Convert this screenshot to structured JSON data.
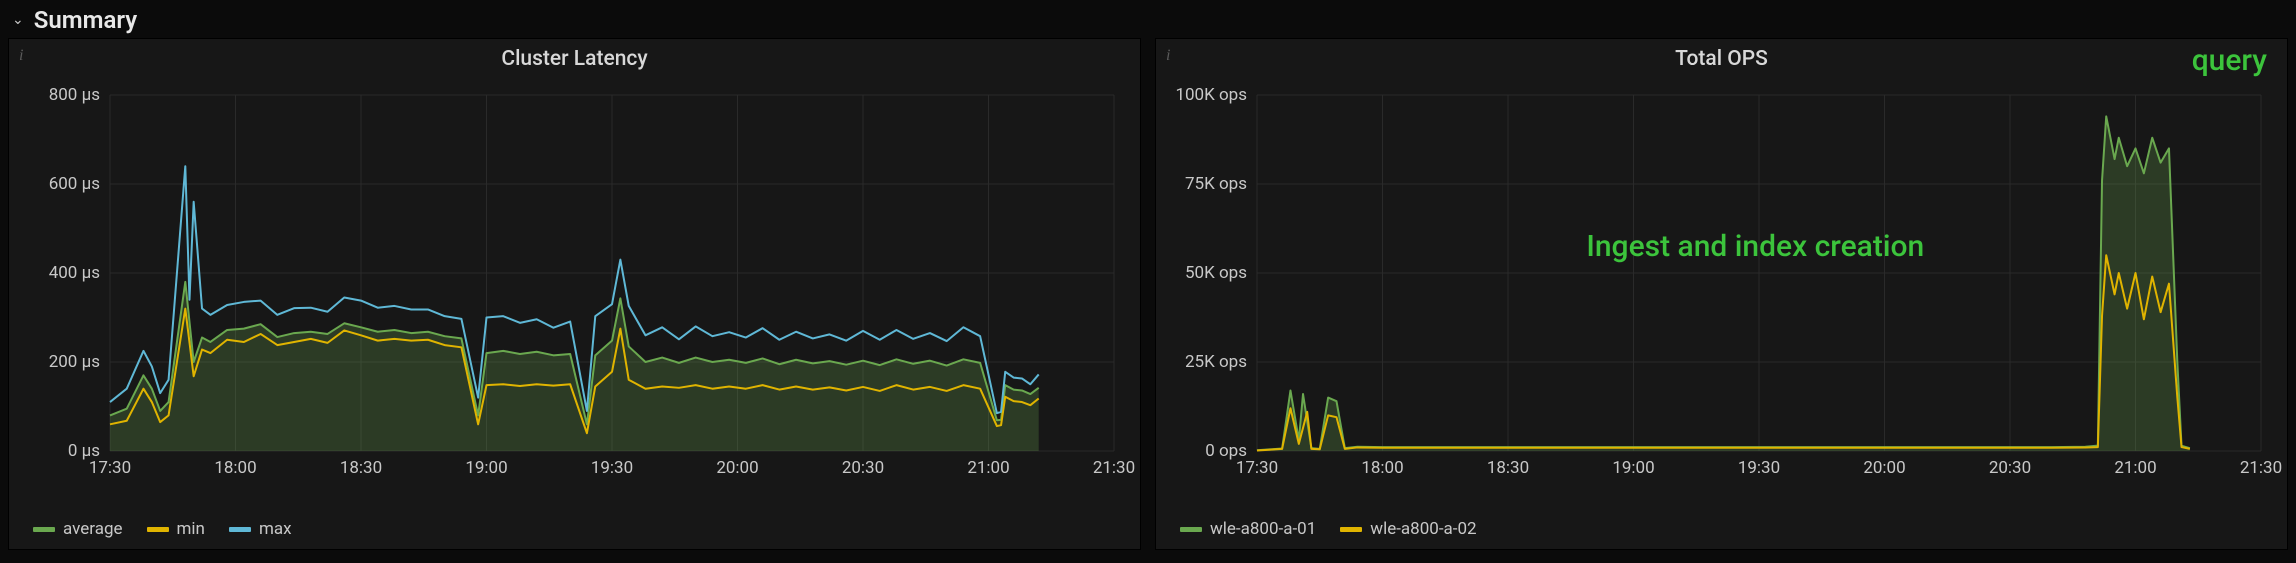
{
  "section": {
    "title": "Summary"
  },
  "palette": {
    "bg_page": "#0b0b0b",
    "bg_panel": "#171717",
    "grid": "#2a2a2a",
    "axis_text": "#c8c8c8",
    "green": "#6aa84f",
    "green_fill": "rgba(106,168,79,0.25)",
    "yellow": "#e0b400",
    "cyan": "#5fb8d6",
    "annot": "#3cc43c"
  },
  "annotations": {
    "query": "query",
    "ingest": "Ingest and index creation"
  },
  "time_axis": {
    "start_min": 1050,
    "end_min": 1290,
    "tick_step": 30,
    "tick_labels": [
      "17:30",
      "18:00",
      "18:30",
      "19:00",
      "19:30",
      "20:00",
      "20:30",
      "21:00",
      "21:30"
    ]
  },
  "panels": {
    "latency": {
      "type": "line-area",
      "title": "Cluster Latency",
      "y": {
        "min": 0,
        "max": 800,
        "step": 200,
        "tick_labels": [
          "0 µs",
          "200 µs",
          "400 µs",
          "600 µs",
          "800 µs"
        ]
      },
      "legend": [
        {
          "key": "avg",
          "label": "average",
          "color": "#6aa84f"
        },
        {
          "key": "min",
          "label": "min",
          "color": "#e0b400"
        },
        {
          "key": "max",
          "label": "max",
          "color": "#5fb8d6"
        }
      ],
      "series": {
        "avg": [
          [
            1050,
            80
          ],
          [
            1054,
            95
          ],
          [
            1058,
            170
          ],
          [
            1060,
            140
          ],
          [
            1062,
            90
          ],
          [
            1064,
            110
          ],
          [
            1068,
            380
          ],
          [
            1070,
            200
          ],
          [
            1072,
            255
          ],
          [
            1074,
            245
          ],
          [
            1078,
            272
          ],
          [
            1082,
            275
          ],
          [
            1086,
            285
          ],
          [
            1090,
            256
          ],
          [
            1094,
            265
          ],
          [
            1098,
            268
          ],
          [
            1102,
            263
          ],
          [
            1106,
            287
          ],
          [
            1110,
            278
          ],
          [
            1114,
            268
          ],
          [
            1118,
            272
          ],
          [
            1122,
            265
          ],
          [
            1126,
            268
          ],
          [
            1130,
            258
          ],
          [
            1134,
            253
          ],
          [
            1138,
            80
          ],
          [
            1140,
            220
          ],
          [
            1144,
            225
          ],
          [
            1148,
            218
          ],
          [
            1152,
            223
          ],
          [
            1156,
            215
          ],
          [
            1160,
            218
          ],
          [
            1164,
            60
          ],
          [
            1166,
            215
          ],
          [
            1170,
            248
          ],
          [
            1172,
            343
          ],
          [
            1174,
            235
          ],
          [
            1178,
            200
          ],
          [
            1182,
            210
          ],
          [
            1186,
            198
          ],
          [
            1190,
            210
          ],
          [
            1194,
            200
          ],
          [
            1198,
            205
          ],
          [
            1202,
            198
          ],
          [
            1206,
            208
          ],
          [
            1210,
            195
          ],
          [
            1214,
            205
          ],
          [
            1218,
            197
          ],
          [
            1222,
            202
          ],
          [
            1226,
            194
          ],
          [
            1230,
            203
          ],
          [
            1234,
            193
          ],
          [
            1238,
            206
          ],
          [
            1242,
            196
          ],
          [
            1246,
            203
          ],
          [
            1250,
            192
          ],
          [
            1254,
            206
          ],
          [
            1258,
            198
          ],
          [
            1262,
            69
          ],
          [
            1263,
            70
          ],
          [
            1264,
            148
          ],
          [
            1266,
            138
          ],
          [
            1268,
            136
          ],
          [
            1270,
            128
          ],
          [
            1272,
            142
          ]
        ],
        "min": [
          [
            1050,
            60
          ],
          [
            1054,
            68
          ],
          [
            1058,
            140
          ],
          [
            1060,
            110
          ],
          [
            1062,
            65
          ],
          [
            1064,
            80
          ],
          [
            1068,
            320
          ],
          [
            1070,
            168
          ],
          [
            1072,
            228
          ],
          [
            1074,
            220
          ],
          [
            1078,
            250
          ],
          [
            1082,
            245
          ],
          [
            1086,
            263
          ],
          [
            1090,
            238
          ],
          [
            1094,
            245
          ],
          [
            1098,
            252
          ],
          [
            1102,
            243
          ],
          [
            1106,
            271
          ],
          [
            1110,
            260
          ],
          [
            1114,
            248
          ],
          [
            1118,
            252
          ],
          [
            1122,
            248
          ],
          [
            1126,
            250
          ],
          [
            1130,
            238
          ],
          [
            1134,
            233
          ],
          [
            1138,
            60
          ],
          [
            1140,
            148
          ],
          [
            1144,
            150
          ],
          [
            1148,
            146
          ],
          [
            1152,
            150
          ],
          [
            1156,
            147
          ],
          [
            1160,
            150
          ],
          [
            1164,
            40
          ],
          [
            1166,
            145
          ],
          [
            1170,
            178
          ],
          [
            1172,
            275
          ],
          [
            1174,
            160
          ],
          [
            1178,
            140
          ],
          [
            1182,
            145
          ],
          [
            1186,
            142
          ],
          [
            1190,
            148
          ],
          [
            1194,
            140
          ],
          [
            1198,
            145
          ],
          [
            1202,
            140
          ],
          [
            1206,
            148
          ],
          [
            1210,
            138
          ],
          [
            1214,
            145
          ],
          [
            1218,
            138
          ],
          [
            1222,
            143
          ],
          [
            1226,
            136
          ],
          [
            1230,
            144
          ],
          [
            1234,
            135
          ],
          [
            1238,
            148
          ],
          [
            1242,
            138
          ],
          [
            1246,
            144
          ],
          [
            1250,
            135
          ],
          [
            1254,
            148
          ],
          [
            1258,
            140
          ],
          [
            1262,
            56
          ],
          [
            1263,
            58
          ],
          [
            1264,
            122
          ],
          [
            1266,
            112
          ],
          [
            1268,
            110
          ],
          [
            1270,
            103
          ],
          [
            1272,
            118
          ]
        ],
        "max": [
          [
            1050,
            110
          ],
          [
            1054,
            140
          ],
          [
            1058,
            225
          ],
          [
            1060,
            190
          ],
          [
            1062,
            130
          ],
          [
            1064,
            160
          ],
          [
            1068,
            640
          ],
          [
            1069,
            340
          ],
          [
            1070,
            560
          ],
          [
            1072,
            320
          ],
          [
            1074,
            306
          ],
          [
            1078,
            328
          ],
          [
            1082,
            335
          ],
          [
            1086,
            338
          ],
          [
            1090,
            306
          ],
          [
            1094,
            321
          ],
          [
            1098,
            322
          ],
          [
            1102,
            313
          ],
          [
            1106,
            345
          ],
          [
            1110,
            338
          ],
          [
            1114,
            322
          ],
          [
            1118,
            326
          ],
          [
            1122,
            318
          ],
          [
            1126,
            318
          ],
          [
            1130,
            303
          ],
          [
            1134,
            297
          ],
          [
            1138,
            120
          ],
          [
            1140,
            300
          ],
          [
            1144,
            303
          ],
          [
            1148,
            288
          ],
          [
            1152,
            296
          ],
          [
            1156,
            277
          ],
          [
            1160,
            291
          ],
          [
            1164,
            90
          ],
          [
            1166,
            303
          ],
          [
            1170,
            330
          ],
          [
            1172,
            430
          ],
          [
            1174,
            326
          ],
          [
            1178,
            260
          ],
          [
            1182,
            278
          ],
          [
            1186,
            251
          ],
          [
            1190,
            280
          ],
          [
            1194,
            258
          ],
          [
            1198,
            267
          ],
          [
            1202,
            255
          ],
          [
            1206,
            276
          ],
          [
            1210,
            250
          ],
          [
            1214,
            268
          ],
          [
            1218,
            253
          ],
          [
            1222,
            262
          ],
          [
            1226,
            248
          ],
          [
            1230,
            270
          ],
          [
            1234,
            250
          ],
          [
            1238,
            272
          ],
          [
            1242,
            252
          ],
          [
            1246,
            265
          ],
          [
            1250,
            247
          ],
          [
            1254,
            278
          ],
          [
            1258,
            258
          ],
          [
            1262,
            85
          ],
          [
            1263,
            88
          ],
          [
            1264,
            178
          ],
          [
            1266,
            165
          ],
          [
            1268,
            163
          ],
          [
            1270,
            150
          ],
          [
            1272,
            172
          ]
        ]
      }
    },
    "ops": {
      "type": "line-area",
      "title": "Total OPS",
      "y": {
        "min": 0,
        "max": 100000,
        "step": 25000,
        "tick_labels": [
          "0 ops",
          "25K ops",
          "50K ops",
          "75K ops",
          "100K ops"
        ]
      },
      "legend": [
        {
          "key": "node1",
          "label": "wle-a800-a-01",
          "color": "#6aa84f"
        },
        {
          "key": "node2",
          "label": "wle-a800-a-02",
          "color": "#e0b400"
        }
      ],
      "series": {
        "node1": [
          [
            1050,
            200
          ],
          [
            1056,
            700
          ],
          [
            1058,
            17000
          ],
          [
            1060,
            3000
          ],
          [
            1061,
            16000
          ],
          [
            1063,
            800
          ],
          [
            1065,
            600
          ],
          [
            1067,
            15000
          ],
          [
            1069,
            14000
          ],
          [
            1071,
            800
          ],
          [
            1074,
            1200
          ],
          [
            1080,
            1100
          ],
          [
            1090,
            1100
          ],
          [
            1100,
            1100
          ],
          [
            1110,
            1100
          ],
          [
            1120,
            1100
          ],
          [
            1130,
            1100
          ],
          [
            1140,
            1100
          ],
          [
            1150,
            1100
          ],
          [
            1160,
            1100
          ],
          [
            1170,
            1100
          ],
          [
            1180,
            1100
          ],
          [
            1190,
            1100
          ],
          [
            1200,
            1100
          ],
          [
            1210,
            1100
          ],
          [
            1220,
            1100
          ],
          [
            1230,
            1100
          ],
          [
            1240,
            1100
          ],
          [
            1248,
            1200
          ],
          [
            1251,
            1500
          ],
          [
            1252,
            76000
          ],
          [
            1253,
            94000
          ],
          [
            1255,
            82000
          ],
          [
            1256,
            88000
          ],
          [
            1258,
            80000
          ],
          [
            1260,
            85000
          ],
          [
            1262,
            78000
          ],
          [
            1264,
            88000
          ],
          [
            1266,
            81000
          ],
          [
            1268,
            85000
          ],
          [
            1270,
            25000
          ],
          [
            1271,
            1500
          ],
          [
            1273,
            800
          ]
        ],
        "node2": [
          [
            1050,
            150
          ],
          [
            1056,
            600
          ],
          [
            1058,
            12000
          ],
          [
            1060,
            2000
          ],
          [
            1062,
            11000
          ],
          [
            1063,
            600
          ],
          [
            1065,
            500
          ],
          [
            1067,
            10000
          ],
          [
            1069,
            9500
          ],
          [
            1071,
            600
          ],
          [
            1074,
            1000
          ],
          [
            1080,
            900
          ],
          [
            1090,
            900
          ],
          [
            1100,
            900
          ],
          [
            1110,
            900
          ],
          [
            1120,
            900
          ],
          [
            1130,
            900
          ],
          [
            1140,
            900
          ],
          [
            1150,
            900
          ],
          [
            1160,
            900
          ],
          [
            1170,
            900
          ],
          [
            1180,
            900
          ],
          [
            1190,
            900
          ],
          [
            1200,
            900
          ],
          [
            1210,
            900
          ],
          [
            1220,
            900
          ],
          [
            1230,
            900
          ],
          [
            1240,
            900
          ],
          [
            1248,
            1000
          ],
          [
            1251,
            1100
          ],
          [
            1252,
            38000
          ],
          [
            1253,
            55000
          ],
          [
            1255,
            44000
          ],
          [
            1256,
            50000
          ],
          [
            1258,
            40000
          ],
          [
            1260,
            50000
          ],
          [
            1262,
            37000
          ],
          [
            1264,
            49000
          ],
          [
            1266,
            39000
          ],
          [
            1268,
            47000
          ],
          [
            1270,
            15000
          ],
          [
            1271,
            1100
          ],
          [
            1273,
            600
          ]
        ]
      }
    }
  }
}
